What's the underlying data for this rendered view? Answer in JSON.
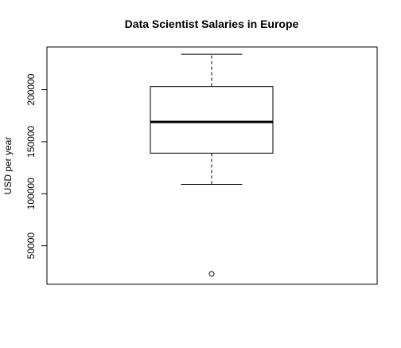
{
  "chart_data": {
    "type": "box",
    "title": "Data Scientist Salaries in Europe",
    "xlabel": "",
    "ylabel": "USD per year",
    "ylim": [
      13000,
      241000
    ],
    "yticks": [
      50000,
      100000,
      150000,
      200000
    ],
    "ytick_labels": [
      "50000",
      "100000",
      "150000",
      "200000"
    ],
    "grid": false,
    "box": {
      "whisker_low": 109000,
      "q1": 139000,
      "median": 169000,
      "q3": 203000,
      "whisker_high": 234000,
      "outliers": [
        23000
      ]
    }
  }
}
